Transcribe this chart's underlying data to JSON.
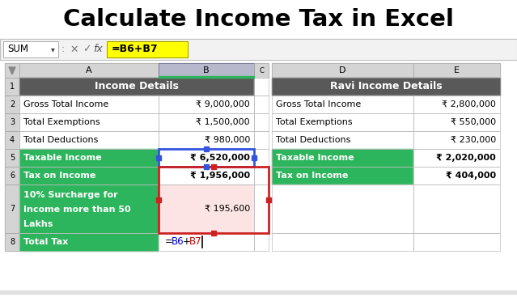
{
  "title": "Calculate Income Tax in Excel",
  "formula_bar_text": "=B6+B7",
  "formula_cell_ref": "SUM",
  "left_header": "Income Details",
  "right_header": "Ravi Income Details",
  "left_rows": [
    [
      "Gross Total Income",
      "₹ 9,000,000",
      false,
      false
    ],
    [
      "Total Exemptions",
      "₹ 1,500,000",
      false,
      false
    ],
    [
      "Total Deductions",
      "₹ 980,000",
      false,
      false
    ],
    [
      "Taxable Income",
      "₹ 6,520,000",
      true,
      false
    ],
    [
      "Tax on Income",
      "₹ 1,956,000",
      true,
      false
    ],
    [
      "10% Surcharge for\nIncome more than 50\nLakhs",
      "₹ 195,600",
      false,
      true
    ],
    [
      "Total Tax",
      "=B6+B7",
      true,
      false
    ]
  ],
  "right_rows": [
    [
      "Gross Total Income",
      "₹ 2,800,000",
      false
    ],
    [
      "Total Exemptions",
      "₹ 550,000",
      false
    ],
    [
      "Total Deductions",
      "₹ 230,000",
      false
    ],
    [
      "Taxable Income",
      "₹ 2,020,000",
      true
    ],
    [
      "Tax on Income",
      "₹ 404,000",
      true
    ]
  ],
  "colors": {
    "title_bg": "#ffffff",
    "formula_bar_bg": "#f2f2f2",
    "col_header_bg": "#d4d4d4",
    "col_b_header_bg": "#c8c8d8",
    "row_header_bg": "#d4d4d4",
    "table_header_bg": "#595959",
    "table_header_fg": "#ffffff",
    "green_label_bg": "#2db55d",
    "green_label_fg": "#ffffff",
    "white_cell_bg": "#ffffff",
    "pink_cell_bg": "#fce4e4",
    "cell_border": "#b8b8b8",
    "dark_border": "#666666",
    "blue_sel": "#3355dd",
    "red_sel": "#cc2222",
    "yellow": "#ffff00"
  }
}
